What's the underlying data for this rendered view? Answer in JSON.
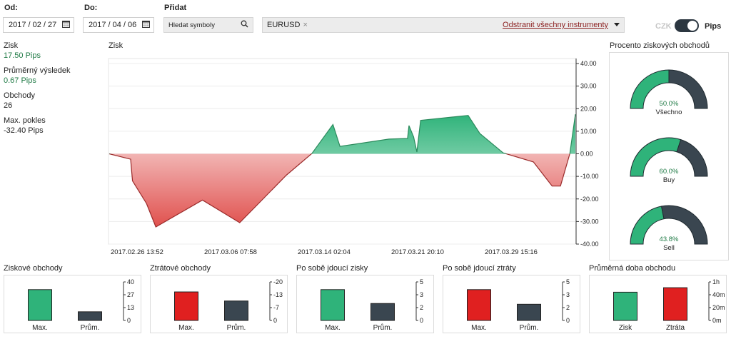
{
  "filters": {
    "from_label": "Od:",
    "from_value": "2017 / 02 / 27",
    "to_label": "Do:",
    "to_value": "2017 / 04 / 06",
    "add_label": "Přidat",
    "search_placeholder": "Hledat symboly",
    "instrument_chip": "EURUSD",
    "remove_all": "Odstranit všechny instrumenty",
    "unit_left": "CZK",
    "unit_right": "Pips"
  },
  "stats": [
    {
      "label": "Zisk",
      "value": "17.50 Pips",
      "positive": true
    },
    {
      "label": "Průměrný výsledek",
      "value": "0.67 Pips",
      "positive": true
    },
    {
      "label": "Obchody",
      "value": "26",
      "positive": false
    },
    {
      "label": "Max. pokles",
      "value": "-32.40 Pips",
      "positive": false
    }
  ],
  "main_chart": {
    "title": "Zisk",
    "x_ticks": [
      "2017.02.26 13:52",
      "2017.03.06 07:58",
      "2017.03.14 02:04",
      "2017.03.21 20:10",
      "2017.03.29 15:16"
    ],
    "y_ticks": [
      "40.00",
      "30.00",
      "20.00",
      "10.00",
      "0.00",
      "-10.00",
      "-20.00",
      "-30.00",
      "-40.00"
    ]
  },
  "chart_data": {
    "type": "area",
    "title": "Zisk",
    "ylim": [
      -40,
      40
    ],
    "x_tick_labels": [
      "2017.02.26 13:52",
      "2017.03.06 07:58",
      "2017.03.14 02:04",
      "2017.03.21 20:10",
      "2017.03.29 15:16"
    ],
    "points": [
      [
        0.0,
        0
      ],
      [
        0.046,
        -2.4
      ],
      [
        0.05,
        -12
      ],
      [
        0.08,
        -22
      ],
      [
        0.1,
        -32.4
      ],
      [
        0.2,
        -20.5
      ],
      [
        0.28,
        -30.5
      ],
      [
        0.38,
        -9.5
      ],
      [
        0.435,
        0.2
      ],
      [
        0.48,
        13
      ],
      [
        0.495,
        3.3
      ],
      [
        0.6,
        6.5
      ],
      [
        0.64,
        6.8
      ],
      [
        0.643,
        12.5
      ],
      [
        0.653,
        7.5
      ],
      [
        0.66,
        0.8
      ],
      [
        0.668,
        14.8
      ],
      [
        0.77,
        17
      ],
      [
        0.795,
        9
      ],
      [
        0.845,
        0.4
      ],
      [
        0.91,
        -3.6
      ],
      [
        0.95,
        -14.3
      ],
      [
        0.968,
        -14.3
      ],
      [
        0.988,
        0
      ],
      [
        1.0,
        17.5
      ]
    ],
    "positive_color": "#2fb37a",
    "negative_color": "#e0514e"
  },
  "win_rate": {
    "title": "Procento ziskových obchodů",
    "gauges": [
      {
        "percent_text": "50.0%",
        "percent": 50.0,
        "label": "Všechno"
      },
      {
        "percent_text": "60.0%",
        "percent": 60.0,
        "label": "Buy"
      },
      {
        "percent_text": "43.8%",
        "percent": 43.8,
        "label": "Sell"
      }
    ]
  },
  "mini_charts": [
    {
      "title": "Ziskové obchody",
      "ticks": [
        "40",
        "27",
        "13",
        "0"
      ],
      "cats": [
        "Max.",
        "Prům."
      ],
      "values": [
        32,
        9
      ],
      "max": 40,
      "colors": [
        "#2fb37a",
        "#3a4650"
      ]
    },
    {
      "title": "Ztrátové obchody",
      "ticks": [
        "-20",
        "-13",
        "-7",
        "0"
      ],
      "cats": [
        "Max.",
        "Prům."
      ],
      "values": [
        -14.8,
        -10.1
      ],
      "max": -20,
      "colors": [
        "#e02020",
        "#3a4650"
      ]
    },
    {
      "title": "Po sobě jdoucí zisky",
      "ticks": [
        "5",
        "3",
        "2",
        "0"
      ],
      "cats": [
        "Max.",
        "Prům."
      ],
      "values": [
        4,
        2.2
      ],
      "max": 5,
      "colors": [
        "#2fb37a",
        "#3a4650"
      ]
    },
    {
      "title": "Po sobě jdoucí ztráty",
      "ticks": [
        "5",
        "3",
        "2",
        "0"
      ],
      "cats": [
        "Max.",
        "Prům."
      ],
      "values": [
        4,
        2.1
      ],
      "max": 5,
      "colors": [
        "#e02020",
        "#3a4650"
      ]
    },
    {
      "title": "Průměrná doba obchodu",
      "ticks": [
        "1h",
        "40m",
        "20m",
        "0m"
      ],
      "cats": [
        "Zisk",
        "Ztráta"
      ],
      "values": [
        44,
        51
      ],
      "max": 60,
      "colors": [
        "#2fb37a",
        "#e02020"
      ]
    }
  ],
  "colors": {
    "green": "#2fb37a",
    "red": "#e0514e",
    "dark": "#3a4650"
  },
  "icons": {
    "calendar": "calendar-icon",
    "search": "search-icon",
    "remove": "close-icon",
    "dropdown": "caret-down-icon"
  }
}
